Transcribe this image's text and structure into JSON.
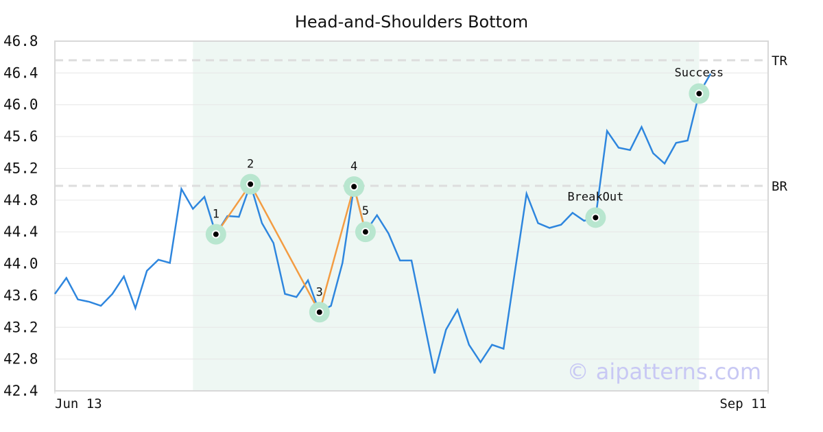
{
  "chart_data": {
    "type": "line",
    "title": "Head-and-Shoulders Bottom",
    "watermark": "© aipatterns.com",
    "color": "#2e86de",
    "pattern_color": "#f39c42",
    "marker_color": "#b8e6cf",
    "shade_color": "#eef7f3",
    "values": [
      43.62,
      43.82,
      43.55,
      43.52,
      43.47,
      43.62,
      43.84,
      43.44,
      43.91,
      44.05,
      44.01,
      44.94,
      44.69,
      44.84,
      44.37,
      44.6,
      44.59,
      45.0,
      44.51,
      44.26,
      43.62,
      43.58,
      43.79,
      43.39,
      43.47,
      44.01,
      44.97,
      44.4,
      44.61,
      44.38,
      44.04,
      44.04,
      43.33,
      42.62,
      43.17,
      43.42,
      42.98,
      42.76,
      42.98,
      42.93,
      43.91,
      44.88,
      44.51,
      44.45,
      44.49,
      44.64,
      44.54,
      44.58,
      45.67,
      45.46,
      45.43,
      45.72,
      45.39,
      45.26,
      45.52,
      45.55,
      46.14,
      46.39
    ],
    "xlim": [
      0,
      62
    ],
    "xticks": [
      {
        "value": 0,
        "label": "Jun 13"
      },
      {
        "value": 62,
        "label": "Sep 11"
      }
    ],
    "ylim": [
      42.4,
      46.8
    ],
    "yticks": [
      42.4,
      42.8,
      43.2,
      43.6,
      {
        "value": 44,
        "label": "44.0"
      },
      44.4,
      44.8,
      45.2,
      45.6,
      {
        "value": 46,
        "label": "46.0"
      },
      46.4,
      46.8
    ],
    "grid": true,
    "shaded_range": [
      12,
      56
    ],
    "levels": [
      {
        "name": "TR",
        "value": 46.56
      },
      {
        "name": "BR",
        "value": 44.98
      }
    ],
    "pattern_points": [
      {
        "index": 14,
        "label": "1"
      },
      {
        "index": 17,
        "label": "2"
      },
      {
        "index": 23,
        "label": "3"
      },
      {
        "index": 26,
        "label": "4"
      },
      {
        "index": 27,
        "label": "5"
      }
    ],
    "events": [
      {
        "index": 47,
        "label": "BreakOut"
      },
      {
        "index": 56,
        "label": "Success"
      }
    ]
  }
}
